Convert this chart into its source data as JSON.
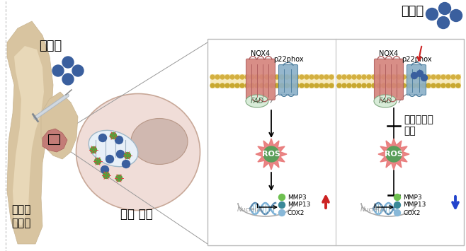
{
  "bg_color": "#ffffff",
  "left_panel": {
    "mitocel_label": "미토셀",
    "cell_label": "관절 세포",
    "disease_label": "퇴행성\n관절염",
    "cell_color": "#f0ddd8",
    "nucleus_color": "#d8c0b8",
    "blue_dot_color": "#3a5f9e",
    "green_dot_color": "#4a8a3a"
  },
  "right_panel": {
    "box_bg": "#ffffff",
    "box_border": "#c0c0c0",
    "membrane_color_top": "#e8c87e",
    "membrane_color_bottom": "#d4b060",
    "nox4_color": "#d4827a",
    "nox4_border": "#b06060",
    "p22phox_color": "#8ab0c8",
    "p22phox_border": "#5080a0",
    "fad_color": "#d8ecd8",
    "fad_border": "#80a880",
    "ros_center_color": "#5a9e5a",
    "ros_spike_color": "#e87878",
    "dna_color1": "#7ab0d8",
    "dna_color2": "#5888b0",
    "nucleus_line_color": "#aaaaaa",
    "red_arrow_color": "#cc2222",
    "blue_arrow_color": "#2244cc",
    "mitocel_color": "#3a5f9e"
  },
  "labels": {
    "mitocel_top_right": "미토셀",
    "mitocel_left": "미토셀",
    "nox4": "NOX4",
    "p22phox": "p22phox",
    "fad": "FAD",
    "ros": "ROS",
    "nucleus": "Nucleus",
    "mmp3": "MMP3",
    "mmp13": "MMP13",
    "cox2": "COX2",
    "cell_label": "관절 세포",
    "disease_label": "퇴행성\n관절염",
    "inhibit_line1": "활성산소종",
    "inhibit_line2": "억제"
  }
}
